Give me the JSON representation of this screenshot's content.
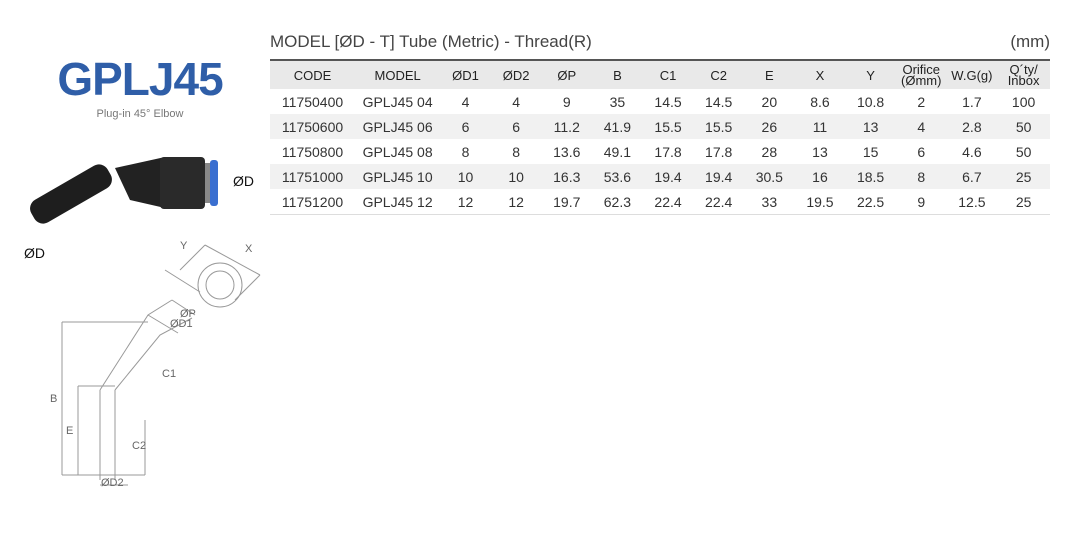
{
  "product": {
    "title": "GPLJ45",
    "subtitle": "Plug-in 45° Elbow",
    "label_d_right": "ØD",
    "label_d_left": "ØD"
  },
  "drawing_labels": {
    "y": "Y",
    "x": "X",
    "p": "ØP",
    "d1": "ØD1",
    "c1": "C1",
    "b": "B",
    "e": "E",
    "c2": "C2",
    "d2": "ØD2"
  },
  "table": {
    "caption": "MODEL [ØD - T]  Tube (Metric) - Thread(R)",
    "unit": "(mm)",
    "headers": [
      "CODE",
      "MODEL",
      "ØD1",
      "ØD2",
      "ØP",
      "B",
      "C1",
      "C2",
      "E",
      "X",
      "Y",
      "Orifice (Ømm)",
      "W.G(g)",
      "Q´ty/ Inbox"
    ],
    "rows": [
      [
        "11750400",
        "GPLJ45 04",
        "4",
        "4",
        "9",
        "35",
        "14.5",
        "14.5",
        "20",
        "8.6",
        "10.8",
        "2",
        "1.7",
        "100"
      ],
      [
        "11750600",
        "GPLJ45 06",
        "6",
        "6",
        "11.2",
        "41.9",
        "15.5",
        "15.5",
        "26",
        "11",
        "13",
        "4",
        "2.8",
        "50"
      ],
      [
        "11750800",
        "GPLJ45 08",
        "8",
        "8",
        "13.6",
        "49.1",
        "17.8",
        "17.8",
        "28",
        "13",
        "15",
        "6",
        "4.6",
        "50"
      ],
      [
        "11751000",
        "GPLJ45 10",
        "10",
        "10",
        "16.3",
        "53.6",
        "19.4",
        "19.4",
        "30.5",
        "16",
        "18.5",
        "8",
        "6.7",
        "25"
      ],
      [
        "11751200",
        "GPLJ45 12",
        "12",
        "12",
        "19.7",
        "62.3",
        "22.4",
        "22.4",
        "33",
        "19.5",
        "22.5",
        "9",
        "12.5",
        "25"
      ]
    ]
  },
  "colors": {
    "brand": "#2f5ea8",
    "release_ring": "#3a6fd0"
  }
}
